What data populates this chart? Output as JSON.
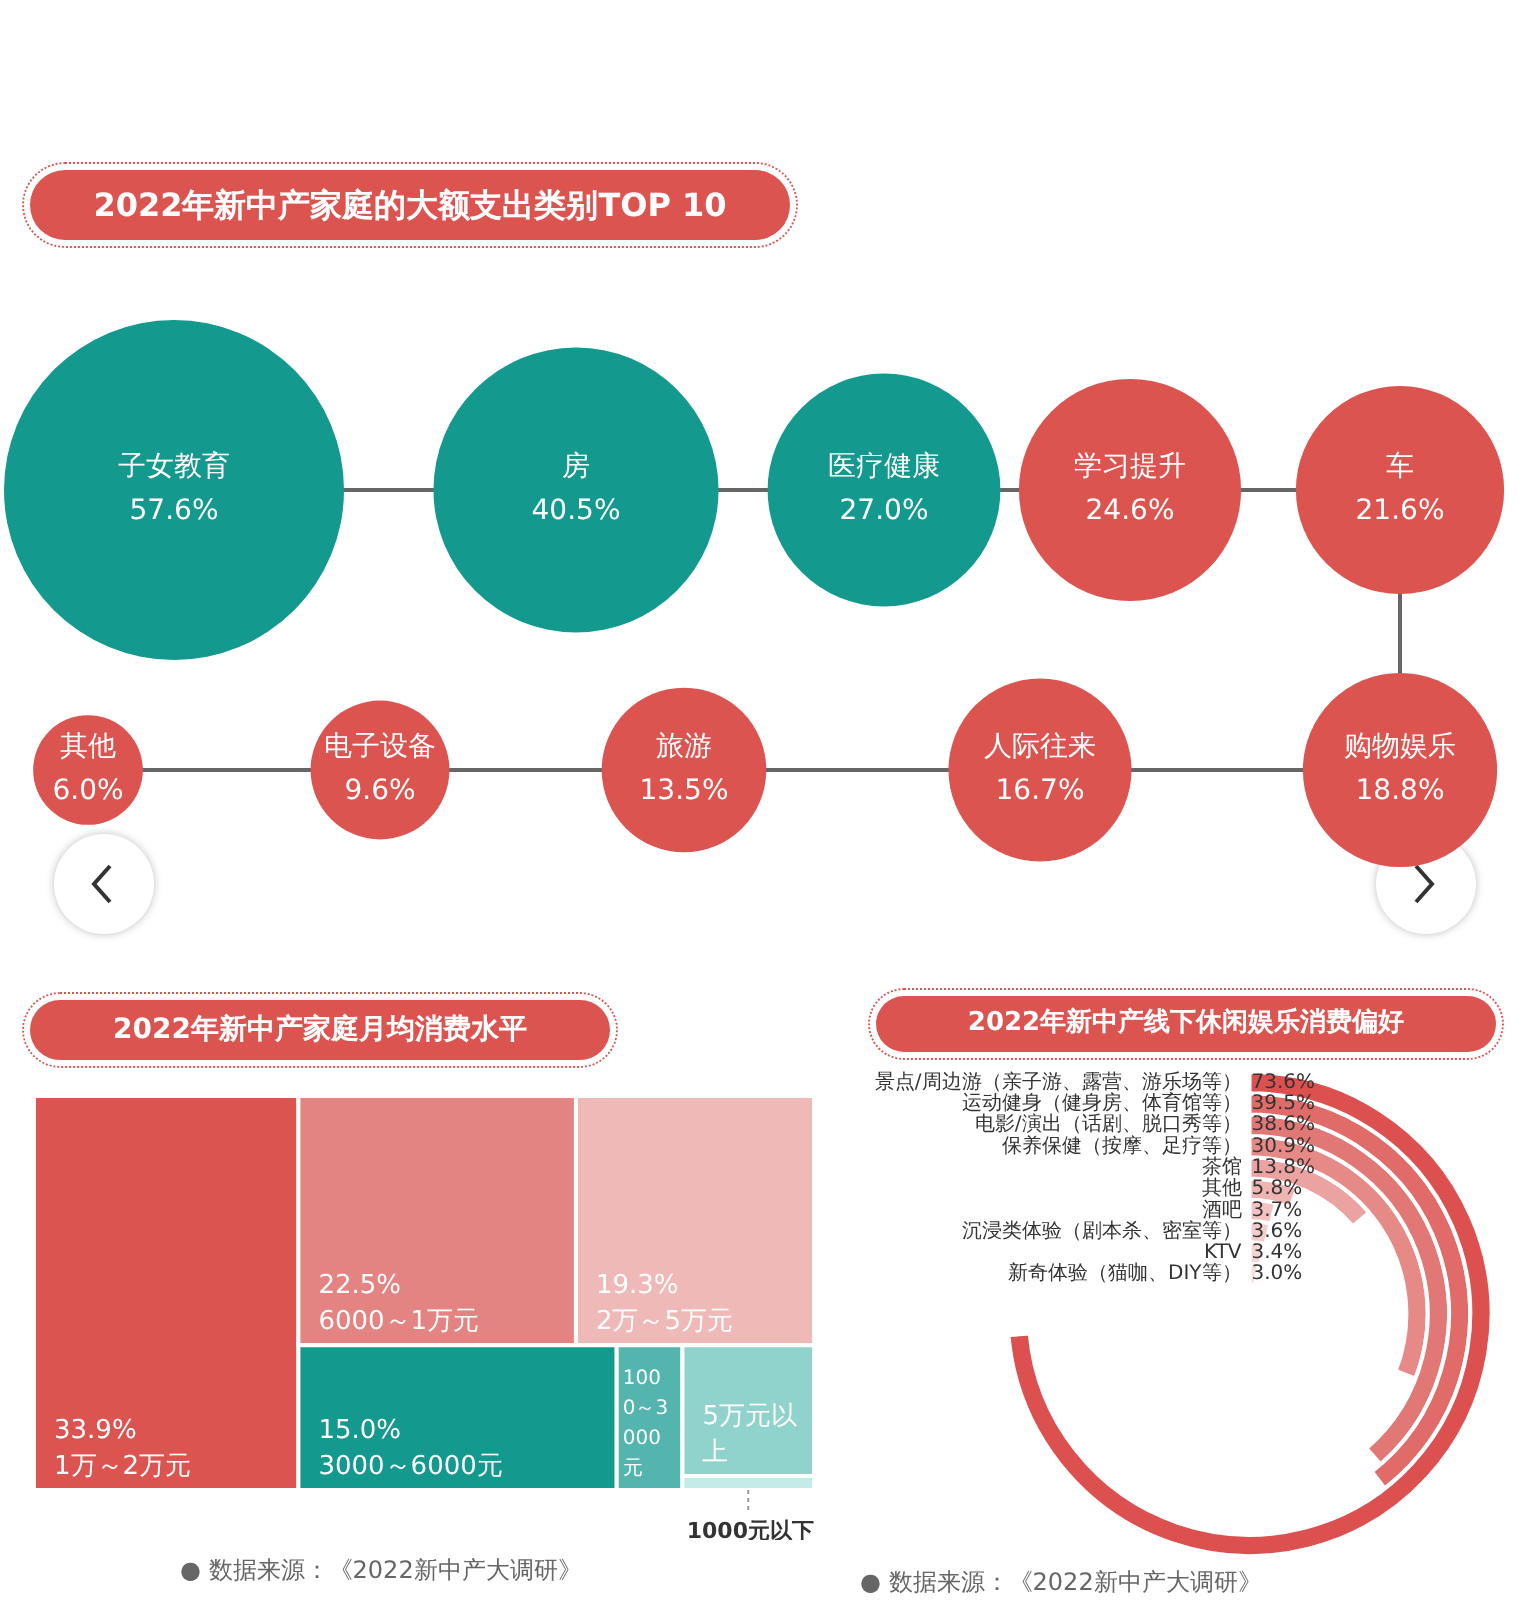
{
  "chart_data": [
    {
      "type": "other",
      "title": "2022年新中产家庭的大额支出类别TOP 10",
      "categories": [
        "子女教育",
        "房",
        "医疗健康",
        "学习提升",
        "车",
        "购物娱乐",
        "人际往来",
        "旅游",
        "电子设备",
        "其他"
      ],
      "values": [
        57.6,
        40.5,
        27.0,
        24.6,
        21.6,
        18.8,
        16.7,
        13.5,
        9.6,
        6.0
      ],
      "value_labels": [
        "57.6%",
        "40.5%",
        "27.0%",
        "24.6%",
        "21.6%",
        "18.8%",
        "16.7%",
        "13.5%",
        "9.6%",
        "6.0%"
      ],
      "colors": [
        "#13998e",
        "#13998e",
        "#13998e",
        "#dc5450",
        "#dc5450",
        "#dc5450",
        "#dc5450",
        "#dc5450",
        "#dc5450",
        "#dc5450"
      ]
    },
    {
      "type": "other",
      "title": "2022年新中产家庭月均消费水平",
      "categories": [
        "1万～2万元",
        "6000～1万元",
        "2万～5万元",
        "3000～6000元",
        "1000～3000元",
        "5万元以上",
        "1000元以下"
      ],
      "values": [
        33.9,
        22.5,
        19.3,
        15.0,
        null,
        null,
        null
      ],
      "value_labels": [
        "33.9%",
        "22.5%",
        "19.3%",
        "15.0%",
        null,
        null,
        null
      ],
      "colors": [
        "#dc5450",
        "#e48482",
        "#efb9b8",
        "#13998e",
        "#54b5ae",
        "#8fd3cc",
        "#c5ebe7"
      ],
      "annotations": [
        "● 数据来源：《2022新中产大调研》"
      ]
    },
    {
      "type": "other",
      "title": "2022年新中产线下休闲娱乐消费偏好",
      "categories": [
        "景点/周边游（亲子游、露营、游乐场等）",
        "运动健身（健身房、体育馆等）",
        "电影/演出（话剧、脱口秀等）",
        "保养保健（按摩、足疗等）",
        "茶馆",
        "其他",
        "酒吧",
        "沉浸类体验（剧本杀、密室等）",
        "KTV",
        "新奇体验（猫咖、DIY等）"
      ],
      "values": [
        73.6,
        39.5,
        38.6,
        30.9,
        13.8,
        5.8,
        3.7,
        3.6,
        3.4,
        3.0
      ],
      "value_labels": [
        "73.6%",
        "39.5%",
        "38.6%",
        "30.9%",
        "13.8%",
        "5.8%",
        "3.7%",
        "3.6%",
        "3.4%",
        "3.0%"
      ],
      "colors": [
        "#dc5050",
        "#e06b69",
        "#e27876",
        "#e68a88",
        "#eba3a1",
        "#efb5b3",
        "#f2c3c2",
        "#f4cccb",
        "#f6d6d5",
        "#f8dfde"
      ],
      "annotations": [
        "● 数据来源：《2022新中产大调研》"
      ]
    }
  ]
}
